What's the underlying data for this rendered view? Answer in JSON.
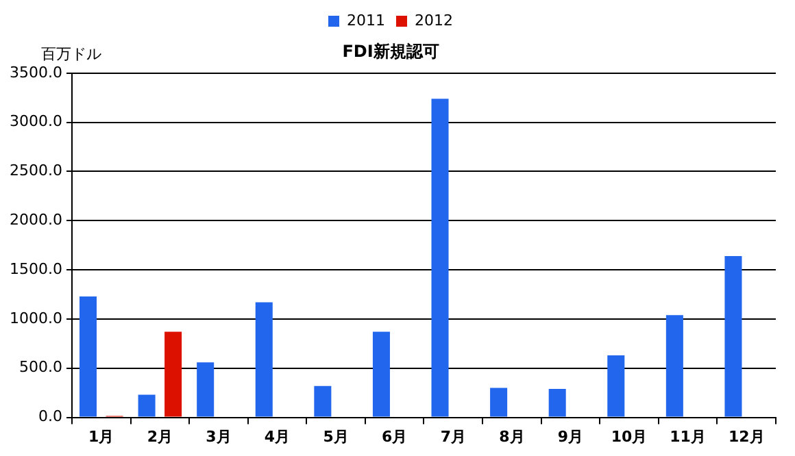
{
  "chart_data": {
    "type": "bar",
    "title": "FDI新規認可",
    "ylabel": "百万ドル",
    "categories": [
      "1月",
      "2月",
      "3月",
      "4月",
      "5月",
      "6月",
      "7月",
      "8月",
      "9月",
      "10月",
      "11月",
      "12月"
    ],
    "series": [
      {
        "name": "2011",
        "color": "#2266ee",
        "values": [
          1230,
          230,
          560,
          1170,
          320,
          870,
          3240,
          300,
          290,
          630,
          1040,
          1640
        ]
      },
      {
        "name": "2012",
        "color": "#dd1100",
        "values": [
          15,
          870,
          null,
          null,
          null,
          null,
          null,
          null,
          null,
          null,
          null,
          null
        ]
      }
    ],
    "ylim": [
      0,
      3500
    ],
    "yticks": [
      {
        "value": 0,
        "label": "0.0"
      },
      {
        "value": 500,
        "label": "500.0"
      },
      {
        "value": 1000,
        "label": "1000.0"
      },
      {
        "value": 1500,
        "label": "1500.0"
      },
      {
        "value": 2000,
        "label": "2000.0"
      },
      {
        "value": 2500,
        "label": "2500.0"
      },
      {
        "value": 3000,
        "label": "3000.0"
      },
      {
        "value": 3500,
        "label": "3500.0"
      }
    ],
    "grid": "y",
    "legend": "top"
  }
}
